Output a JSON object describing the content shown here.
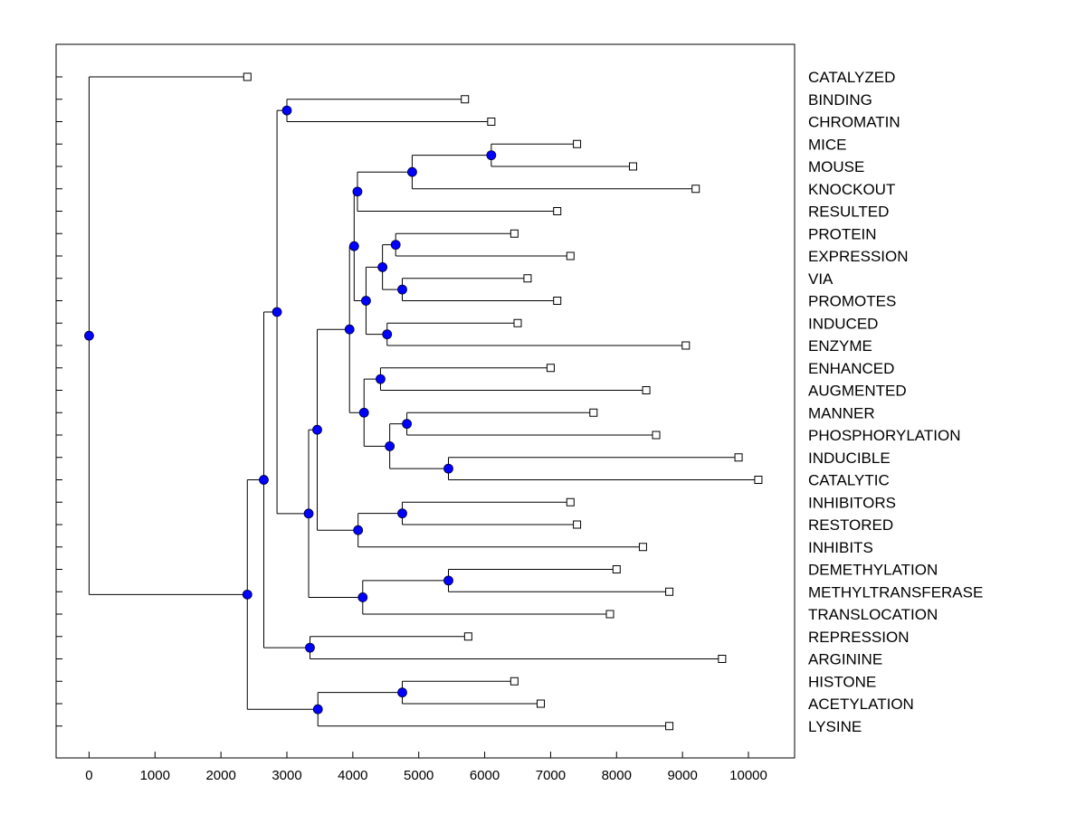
{
  "chart_data": {
    "type": "dendrogram",
    "orientation": "horizontal",
    "title": "",
    "xlabel": "",
    "ylabel": "",
    "xlim": [
      -500,
      10700
    ],
    "xticks": [
      0,
      1000,
      2000,
      3000,
      4000,
      5000,
      6000,
      7000,
      8000,
      9000,
      10000
    ],
    "xtick_labels": [
      "0",
      "1000",
      "2000",
      "3000",
      "4000",
      "5000",
      "6000",
      "7000",
      "8000",
      "9000",
      "10000"
    ],
    "colors": {
      "node": "#0000ff",
      "line": "#000000",
      "leaf": "#ffffff"
    },
    "leaves": [
      {
        "label": "CATALYZED",
        "value": 2400
      },
      {
        "label": "BINDING",
        "value": 5700
      },
      {
        "label": "CHROMATIN",
        "value": 6100
      },
      {
        "label": "MICE",
        "value": 7400
      },
      {
        "label": "MOUSE",
        "value": 8250
      },
      {
        "label": "KNOCKOUT",
        "value": 9200
      },
      {
        "label": "RESULTED",
        "value": 7100
      },
      {
        "label": "PROTEIN",
        "value": 6450
      },
      {
        "label": "EXPRESSION",
        "value": 7300
      },
      {
        "label": "VIA",
        "value": 6650
      },
      {
        "label": "PROMOTES",
        "value": 7100
      },
      {
        "label": "INDUCED",
        "value": 6500
      },
      {
        "label": "ENZYME",
        "value": 9050
      },
      {
        "label": "ENHANCED",
        "value": 7000
      },
      {
        "label": "AUGMENTED",
        "value": 8450
      },
      {
        "label": "MANNER",
        "value": 7650
      },
      {
        "label": "PHOSPHORYLATION",
        "value": 8600
      },
      {
        "label": "INDUCIBLE",
        "value": 9850
      },
      {
        "label": "CATALYTIC",
        "value": 10150
      },
      {
        "label": "INHIBITORS",
        "value": 7300
      },
      {
        "label": "RESTORED",
        "value": 7400
      },
      {
        "label": "INHIBITS",
        "value": 8400
      },
      {
        "label": "DEMETHYLATION",
        "value": 8000
      },
      {
        "label": "METHYLTRANSFERASE",
        "value": 8800
      },
      {
        "label": "TRANSLOCATION",
        "value": 7900
      },
      {
        "label": "REPRESSION",
        "value": 5750
      },
      {
        "label": "ARGININE",
        "value": 9600
      },
      {
        "label": "HISTONE",
        "value": 6450
      },
      {
        "label": "ACETYLATION",
        "value": 6850
      },
      {
        "label": "LYSINE",
        "value": 8800
      }
    ],
    "nodes": [
      {
        "id": "N1",
        "value": 3000,
        "children": [
          "L1",
          "L2"
        ]
      },
      {
        "id": "N2",
        "value": 6100,
        "children": [
          "L3",
          "L4"
        ]
      },
      {
        "id": "N3",
        "value": 4900,
        "children": [
          "N2",
          "L5"
        ]
      },
      {
        "id": "N4",
        "value": 4070,
        "children": [
          "N3",
          "L6"
        ]
      },
      {
        "id": "N5",
        "value": 4650,
        "children": [
          "L7",
          "L8"
        ]
      },
      {
        "id": "N6",
        "value": 4750,
        "children": [
          "L9",
          "L10"
        ]
      },
      {
        "id": "N7",
        "value": 4450,
        "children": [
          "N5",
          "N6"
        ]
      },
      {
        "id": "N8",
        "value": 4520,
        "children": [
          "L11",
          "L12"
        ]
      },
      {
        "id": "N9",
        "value": 4200,
        "children": [
          "N7",
          "N8"
        ]
      },
      {
        "id": "N10",
        "value": 4020,
        "children": [
          "N4",
          "N9"
        ]
      },
      {
        "id": "N11",
        "value": 4420,
        "children": [
          "L13",
          "L14"
        ]
      },
      {
        "id": "N12",
        "value": 4820,
        "children": [
          "L15",
          "L16"
        ]
      },
      {
        "id": "N13",
        "value": 5450,
        "children": [
          "L17",
          "L18"
        ]
      },
      {
        "id": "N14",
        "value": 4560,
        "children": [
          "N12",
          "N13"
        ]
      },
      {
        "id": "N15",
        "value": 4170,
        "children": [
          "N11",
          "N14"
        ]
      },
      {
        "id": "N16",
        "value": 3950,
        "children": [
          "N10",
          "N15"
        ]
      },
      {
        "id": "N17",
        "value": 4750,
        "children": [
          "L19",
          "L20"
        ]
      },
      {
        "id": "N18",
        "value": 4080,
        "children": [
          "N17",
          "L21"
        ]
      },
      {
        "id": "N19",
        "value": 3460,
        "children": [
          "N16",
          "N18"
        ]
      },
      {
        "id": "N20",
        "value": 5450,
        "children": [
          "L22",
          "L23"
        ]
      },
      {
        "id": "N21",
        "value": 4150,
        "children": [
          "N20",
          "L24"
        ]
      },
      {
        "id": "N22",
        "value": 3330,
        "children": [
          "N19",
          "N21"
        ]
      },
      {
        "id": "N23",
        "value": 2850,
        "children": [
          "N1",
          "N22"
        ]
      },
      {
        "id": "N24",
        "value": 3350,
        "children": [
          "L25",
          "L26"
        ]
      },
      {
        "id": "N25",
        "value": 2650,
        "children": [
          "N23",
          "N24"
        ]
      },
      {
        "id": "N26",
        "value": 4750,
        "children": [
          "L27",
          "L28"
        ]
      },
      {
        "id": "N27",
        "value": 3470,
        "children": [
          "N26",
          "L29"
        ]
      },
      {
        "id": "N28",
        "value": 2400,
        "children": [
          "N25",
          "N27"
        ]
      },
      {
        "id": "N29",
        "value": 0,
        "children": [
          "L0",
          "N28"
        ]
      }
    ]
  }
}
